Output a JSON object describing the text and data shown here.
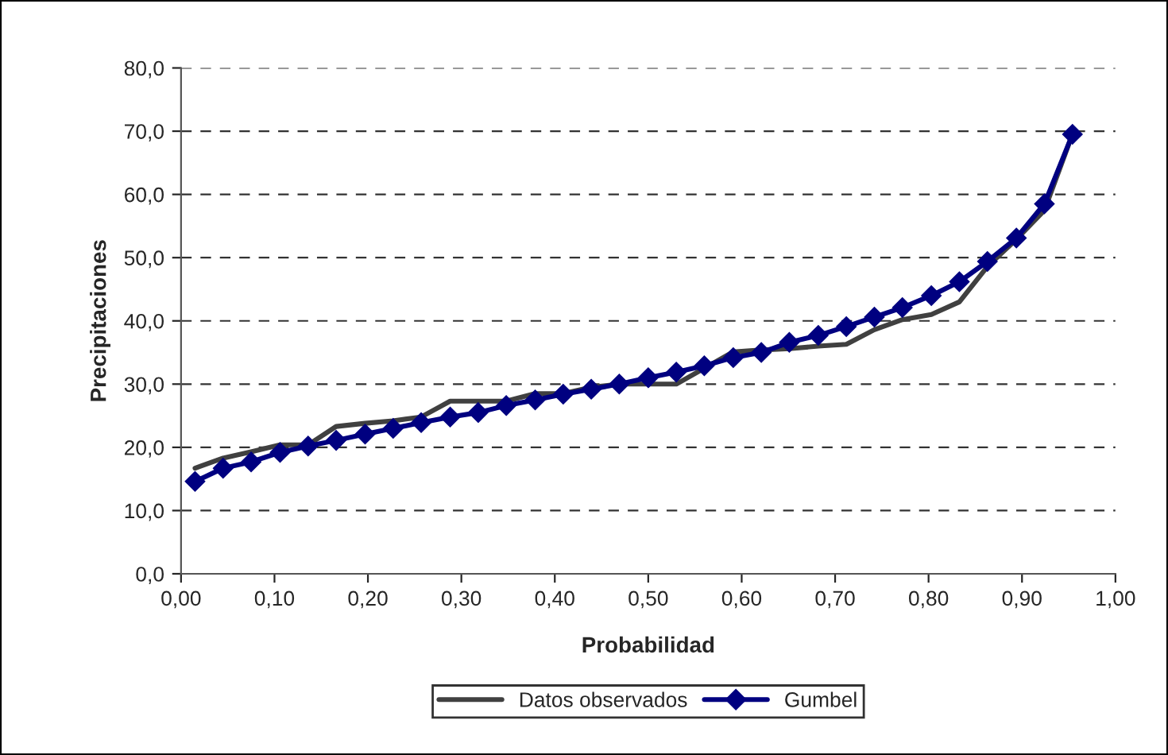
{
  "chart_data": {
    "type": "line",
    "xlabel": "Probabilidad",
    "ylabel": "Precipitaciones",
    "x": [
      0.015,
      0.045,
      0.075,
      0.106,
      0.136,
      0.166,
      0.197,
      0.227,
      0.257,
      0.288,
      0.318,
      0.348,
      0.379,
      0.409,
      0.439,
      0.469,
      0.5,
      0.53,
      0.56,
      0.591,
      0.621,
      0.651,
      0.682,
      0.712,
      0.742,
      0.772,
      0.803,
      0.833,
      0.863,
      0.894,
      0.924,
      0.954
    ],
    "series": [
      {
        "name": "Datos observados",
        "color": "#404040",
        "marker": "none",
        "values": [
          16.7,
          18.3,
          19.3,
          20.4,
          20.4,
          23.3,
          23.8,
          24.2,
          24.8,
          27.3,
          27.3,
          27.3,
          28.5,
          28.5,
          29.5,
          30.0,
          30.0,
          30.0,
          32.5,
          35.1,
          35.4,
          35.6,
          36.0,
          36.3,
          38.6,
          40.2,
          41.0,
          43.0,
          48.6,
          52.9,
          57.5,
          69.5
        ]
      },
      {
        "name": "Gumbel",
        "color": "#000080",
        "marker": "diamond",
        "values": [
          14.6,
          16.7,
          17.7,
          19.2,
          20.2,
          21.1,
          22.1,
          23.0,
          23.9,
          24.8,
          25.5,
          26.6,
          27.5,
          28.4,
          29.2,
          30.0,
          31.0,
          31.9,
          32.9,
          34.2,
          35.0,
          36.6,
          37.7,
          39.1,
          40.6,
          42.1,
          44.0,
          46.2,
          49.4,
          53.1,
          58.5,
          69.5
        ]
      }
    ],
    "xlim": [
      0,
      1
    ],
    "ylim": [
      0,
      80
    ],
    "xticks": [
      {
        "value": 0,
        "label": "0,00"
      },
      {
        "value": 0.1,
        "label": "0,10"
      },
      {
        "value": 0.2,
        "label": "0,20"
      },
      {
        "value": 0.3,
        "label": "0,30"
      },
      {
        "value": 0.4,
        "label": "0,40"
      },
      {
        "value": 0.5,
        "label": "0,50"
      },
      {
        "value": 0.6,
        "label": "0,60"
      },
      {
        "value": 0.7,
        "label": "0,70"
      },
      {
        "value": 0.8,
        "label": "0,80"
      },
      {
        "value": 0.9,
        "label": "0,90"
      },
      {
        "value": 1,
        "label": "1,00"
      }
    ],
    "yticks": [
      {
        "value": 0,
        "label": "0,0"
      },
      {
        "value": 10,
        "label": "10,0"
      },
      {
        "value": 20,
        "label": "20,0"
      },
      {
        "value": 30,
        "label": "30,0"
      },
      {
        "value": 40,
        "label": "40,0"
      },
      {
        "value": 50,
        "label": "50,0"
      },
      {
        "value": 60,
        "label": "60,0"
      },
      {
        "value": 70,
        "label": "70,0"
      },
      {
        "value": 80,
        "label": "80,0"
      }
    ],
    "grid": "y",
    "legend": "bottom",
    "line_style": "solid"
  }
}
